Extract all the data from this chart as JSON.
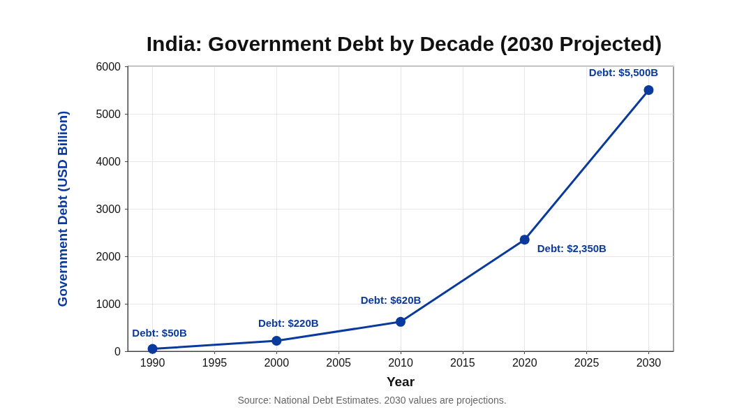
{
  "chart_data": {
    "type": "line",
    "title": "India: Government Debt by Decade (2030 Projected)",
    "xlabel": "Year",
    "ylabel": "Government Debt (USD Billion)",
    "x": [
      1990,
      2000,
      2010,
      2020,
      2030
    ],
    "series": [
      {
        "color": "#0b3a9e",
        "values": [
          50,
          220,
          620,
          2350,
          5500
        ],
        "value_labels": [
          "Debt: $50B",
          "Debt: $220B",
          "Debt: $620B",
          "Debt: $2,350B",
          "Debt: $5,500B"
        ]
      }
    ],
    "xlim": [
      1988,
      2032
    ],
    "xticks": [
      1990,
      1995,
      2000,
      2005,
      2010,
      2015,
      2020,
      2025,
      2030
    ],
    "ylim": [
      0,
      6000
    ],
    "yticks": [
      0,
      1000,
      2000,
      3000,
      4000,
      5000,
      6000
    ],
    "grid": true,
    "marker": "circle",
    "line_style": "solid",
    "annotations": [
      "Source: National Debt Estimates. 2030 values are projections."
    ]
  }
}
